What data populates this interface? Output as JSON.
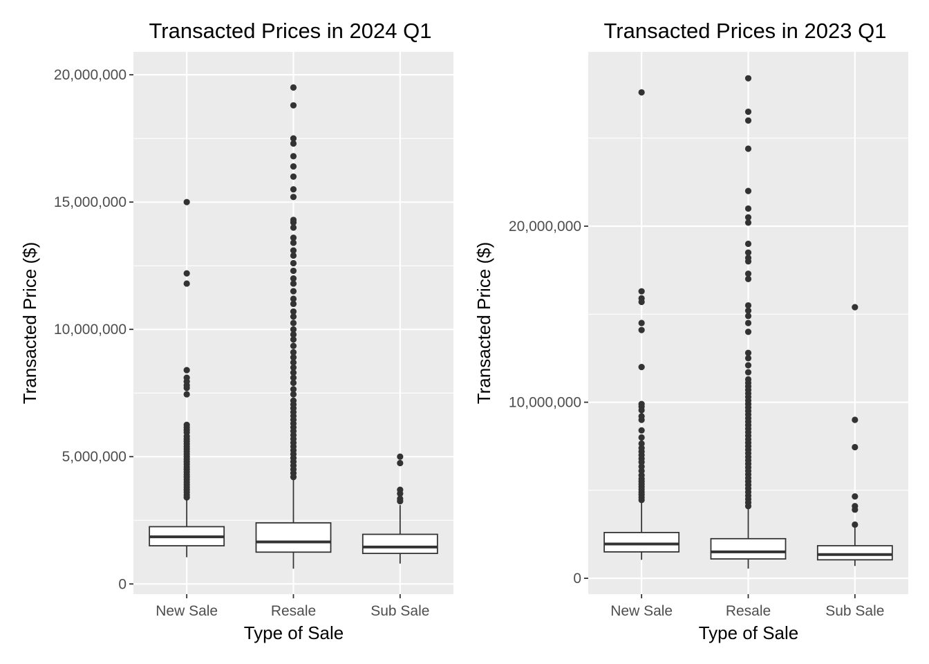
{
  "chart_data": [
    {
      "type": "box",
      "title": "Transacted Prices in 2024 Q1",
      "xlabel": "Type of Sale",
      "ylabel": "Transacted Price ($)",
      "categories": [
        "New Sale",
        "Resale",
        "Sub Sale"
      ],
      "ylim": [
        -400000,
        20900000
      ],
      "yticks": [
        {
          "value": 0,
          "label": "0"
        },
        {
          "value": 5000000,
          "label": "5,000,000"
        },
        {
          "value": 10000000,
          "label": "10,000,000"
        },
        {
          "value": 15000000,
          "label": "15,000,000"
        },
        {
          "value": 20000000,
          "label": "20,000,000"
        }
      ],
      "boxes": [
        {
          "category": "New Sale",
          "whisker_low": 1050000,
          "q1": 1500000,
          "median": 1850000,
          "q3": 2250000,
          "whisker_high": 3350000,
          "outliers": [
            3400000,
            3500000,
            3600000,
            3700000,
            3800000,
            3900000,
            4000000,
            4100000,
            4200000,
            4300000,
            4400000,
            4500000,
            4600000,
            4700000,
            4800000,
            4900000,
            5000000,
            5100000,
            5200000,
            5300000,
            5400000,
            5500000,
            5600000,
            5700000,
            5800000,
            5950000,
            6050000,
            6150000,
            6250000,
            7450000,
            7700000,
            7800000,
            7950000,
            8100000,
            8400000,
            11800000,
            12200000,
            15000000
          ]
        },
        {
          "category": "Resale",
          "whisker_low": 600000,
          "q1": 1250000,
          "median": 1650000,
          "q3": 2400000,
          "whisker_high": 4150000,
          "outliers": [
            4200000,
            4350000,
            4500000,
            4650000,
            4800000,
            4950000,
            5100000,
            5250000,
            5400000,
            5550000,
            5700000,
            5850000,
            6000000,
            6150000,
            6300000,
            6450000,
            6600000,
            6750000,
            6900000,
            7050000,
            7200000,
            7450000,
            7650000,
            7900000,
            8100000,
            8300000,
            8500000,
            8700000,
            8900000,
            9100000,
            9350000,
            9600000,
            9800000,
            10000000,
            10250000,
            10500000,
            10700000,
            11000000,
            11200000,
            11500000,
            11800000,
            12000000,
            12300000,
            12600000,
            12900000,
            13100000,
            13400000,
            13600000,
            14000000,
            14200000,
            14300000,
            15200000,
            15500000,
            16000000,
            16400000,
            16800000,
            17300000,
            17500000,
            18800000,
            19500000
          ]
        },
        {
          "category": "Sub Sale",
          "whisker_low": 800000,
          "q1": 1200000,
          "median": 1450000,
          "q3": 1950000,
          "whisker_high": 3100000,
          "outliers": [
            3250000,
            3350000,
            3550000,
            3700000,
            4750000,
            5000000
          ]
        }
      ]
    },
    {
      "type": "box",
      "title": "Transacted Prices in 2023 Q1",
      "xlabel": "Type of Sale",
      "ylabel": "Transacted Price ($)",
      "categories": [
        "New Sale",
        "Resale",
        "Sub Sale"
      ],
      "ylim": [
        -900000,
        29900000
      ],
      "yticks": [
        {
          "value": 0,
          "label": "0"
        },
        {
          "value": 10000000,
          "label": "10,000,000"
        },
        {
          "value": 20000000,
          "label": "20,000,000"
        }
      ],
      "boxes": [
        {
          "category": "New Sale",
          "whisker_low": 1050000,
          "q1": 1500000,
          "median": 1950000,
          "q3": 2600000,
          "whisker_high": 4350000,
          "outliers": [
            4450000,
            4600000,
            4750000,
            4900000,
            5050000,
            5200000,
            5350000,
            5500000,
            5650000,
            5850000,
            6100000,
            6350000,
            6600000,
            6800000,
            7000000,
            7200000,
            7400000,
            7650000,
            8000000,
            8400000,
            9000000,
            9200000,
            9550000,
            9750000,
            9900000,
            12000000,
            14100000,
            14500000,
            15700000,
            15900000,
            16300000,
            27600000
          ]
        },
        {
          "category": "Resale",
          "whisker_low": 550000,
          "q1": 1100000,
          "median": 1500000,
          "q3": 2250000,
          "whisker_high": 4000000,
          "outliers": [
            4100000,
            4300000,
            4500000,
            4700000,
            4900000,
            5100000,
            5300000,
            5500000,
            5700000,
            5900000,
            6100000,
            6300000,
            6500000,
            6700000,
            6900000,
            7100000,
            7300000,
            7500000,
            7700000,
            7900000,
            8100000,
            8300000,
            8500000,
            8700000,
            8900000,
            9100000,
            9300000,
            9500000,
            9700000,
            9900000,
            10100000,
            10300000,
            10500000,
            10700000,
            10900000,
            11100000,
            11300000,
            11700000,
            12100000,
            12500000,
            12800000,
            14000000,
            14500000,
            14900000,
            15200000,
            15500000,
            17000000,
            17300000,
            18000000,
            18200000,
            18500000,
            19000000,
            20200000,
            20500000,
            21000000,
            22000000,
            24400000,
            26000000,
            26500000,
            28400000
          ]
        },
        {
          "category": "Sub Sale",
          "whisker_low": 700000,
          "q1": 1050000,
          "median": 1350000,
          "q3": 1850000,
          "whisker_high": 3050000,
          "outliers": [
            3050000,
            3900000,
            4100000,
            4650000,
            7450000,
            9000000,
            15400000
          ]
        }
      ]
    }
  ],
  "style": {
    "panel_background": "#ebebeb",
    "grid_major": "#ffffff",
    "box_fill": "#ffffff",
    "box_line": "#333333",
    "point_color": "#333333",
    "tick_text": "#4d4d4d"
  }
}
